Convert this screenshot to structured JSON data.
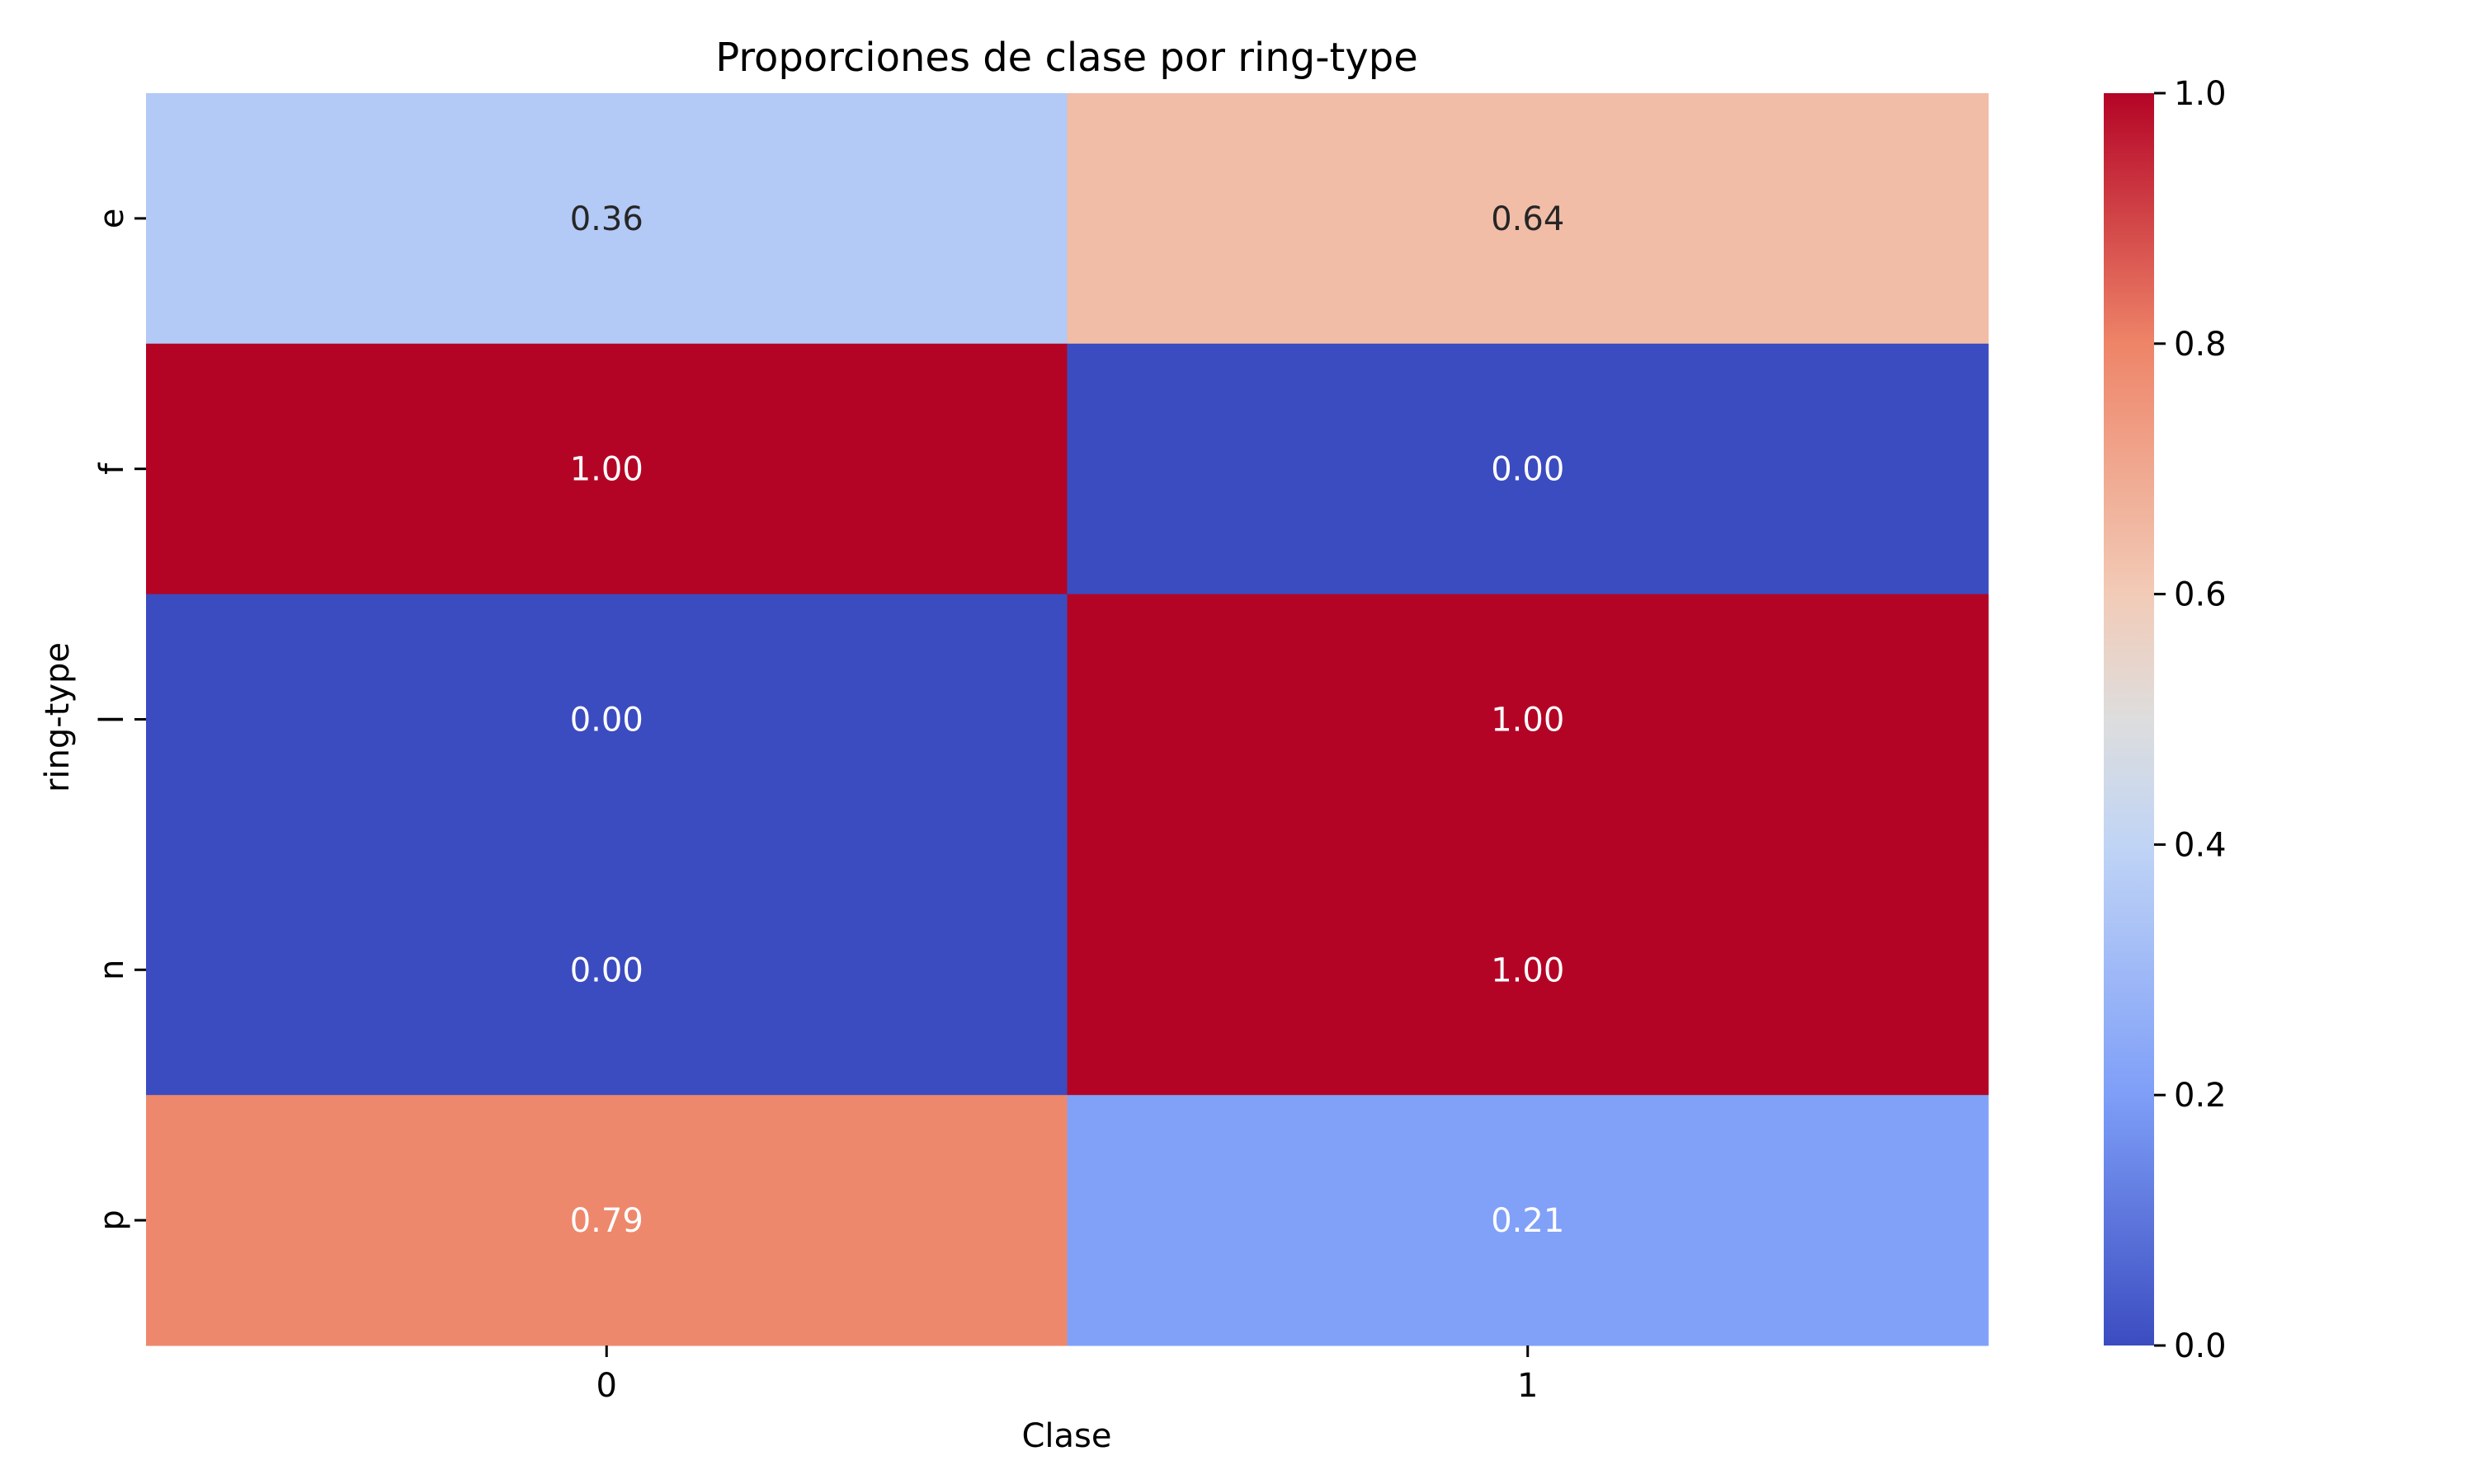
{
  "chart_data": {
    "type": "heatmap",
    "title": "Proporciones de clase por ring-type",
    "xlabel": "Clase",
    "ylabel": "ring-type",
    "x_categories": [
      "0",
      "1"
    ],
    "y_categories": [
      "e",
      "f",
      "l",
      "n",
      "p"
    ],
    "values": [
      [
        0.36,
        0.64
      ],
      [
        1.0,
        0.0
      ],
      [
        0.0,
        1.0
      ],
      [
        0.0,
        1.0
      ],
      [
        0.79,
        0.21
      ]
    ],
    "cell_labels": [
      [
        "0.36",
        "0.64"
      ],
      [
        "1.00",
        "0.00"
      ],
      [
        "0.00",
        "1.00"
      ],
      [
        "0.00",
        "1.00"
      ],
      [
        "0.79",
        "0.21"
      ]
    ],
    "colormap": "coolwarm",
    "color_range": [
      0,
      1
    ],
    "colorbar_ticks": [
      "0.0",
      "0.2",
      "0.4",
      "0.6",
      "0.8",
      "1.0"
    ],
    "colorbar_tick_values": [
      0,
      0.2,
      0.4,
      0.6,
      0.8,
      1.0
    ],
    "grid": false,
    "colorbar_placement": "right"
  }
}
